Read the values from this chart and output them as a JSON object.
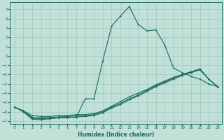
{
  "xlabel": "Humidex (Indice chaleur)",
  "bg_color": "#c0e0d8",
  "grid_color": "#a0c8be",
  "line_color": "#1a6b5a",
  "xlim": [
    -0.5,
    23.5
  ],
  "ylim": [
    -7.3,
    5.8
  ],
  "xticks": [
    0,
    1,
    2,
    3,
    4,
    5,
    6,
    7,
    8,
    9,
    10,
    11,
    12,
    13,
    14,
    15,
    16,
    17,
    18,
    19,
    20,
    21,
    22,
    23
  ],
  "yticks": [
    -7,
    -6,
    -5,
    -4,
    -3,
    -2,
    -1,
    0,
    1,
    2,
    3,
    4,
    5
  ],
  "s1_x": [
    0,
    1,
    2,
    3,
    4,
    5,
    6,
    7,
    8,
    9,
    10,
    11,
    12,
    13,
    14,
    15,
    16,
    17,
    18,
    19,
    20,
    21,
    22,
    23
  ],
  "s1_y": [
    -5.5,
    -6.0,
    -6.8,
    -6.85,
    -6.75,
    -6.65,
    -6.6,
    -6.6,
    -4.6,
    -4.6,
    -0.5,
    3.2,
    4.3,
    5.3,
    3.4,
    2.7,
    2.8,
    1.2,
    -1.3,
    -1.8,
    -2.2,
    -2.5,
    -3.0,
    -3.3
  ],
  "s3_x": [
    0,
    1,
    2,
    3,
    4,
    5,
    6,
    7,
    8,
    9,
    10,
    11,
    12,
    13,
    14,
    15,
    16,
    17,
    18,
    19,
    20,
    21,
    22,
    23
  ],
  "s3_y": [
    -5.5,
    -5.9,
    -6.4,
    -6.5,
    -6.5,
    -6.4,
    -6.4,
    -6.3,
    -6.3,
    -6.2,
    -5.9,
    -5.4,
    -4.9,
    -4.4,
    -4.0,
    -3.6,
    -3.1,
    -2.7,
    -2.3,
    -2.0,
    -1.7,
    -1.4,
    -2.5,
    -3.3
  ],
  "s4_x": [
    0,
    1,
    2,
    3,
    4,
    5,
    6,
    7,
    8,
    9,
    10,
    11,
    12,
    13,
    14,
    15,
    16,
    17,
    18,
    19,
    20,
    21,
    22,
    23
  ],
  "s4_y": [
    -5.5,
    -5.9,
    -6.6,
    -6.65,
    -6.6,
    -6.55,
    -6.5,
    -6.45,
    -6.4,
    -6.3,
    -6.0,
    -5.5,
    -5.1,
    -4.6,
    -4.2,
    -3.7,
    -3.2,
    -2.8,
    -2.4,
    -2.0,
    -1.7,
    -1.4,
    -2.5,
    -3.3
  ],
  "s5_x": [
    0,
    1,
    2,
    3,
    4,
    5,
    6,
    7,
    8,
    9,
    10,
    11,
    12,
    13,
    14,
    15,
    16,
    17,
    18,
    19,
    20,
    21,
    22,
    23
  ],
  "s5_y": [
    -5.5,
    -5.9,
    -6.7,
    -6.75,
    -6.7,
    -6.65,
    -6.6,
    -6.55,
    -6.5,
    -6.4,
    -6.1,
    -5.6,
    -5.2,
    -4.7,
    -4.3,
    -3.8,
    -3.3,
    -2.9,
    -2.5,
    -2.1,
    -1.8,
    -1.5,
    -2.5,
    -3.3
  ]
}
